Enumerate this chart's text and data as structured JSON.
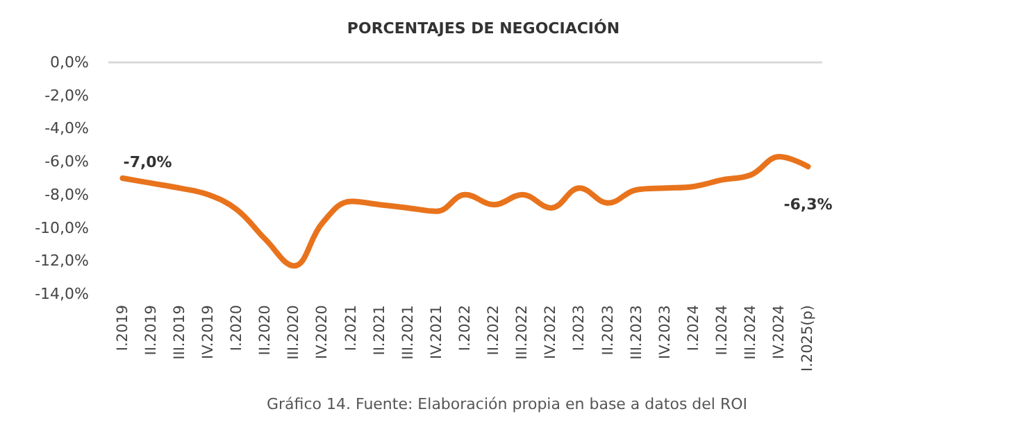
{
  "chart_data": {
    "type": "line",
    "title": "PORCENTAJES DE NEGOCIACIÓN",
    "categories": [
      "I.2019",
      "II.2019",
      "III.2019",
      "IV.2019",
      "I.2020",
      "II.2020",
      "III.2020",
      "IV.2020",
      "I.2021",
      "II.2021",
      "III.2021",
      "IV.2021",
      "I.2022",
      "II.2022",
      "III.2022",
      "IV.2022",
      "I.2023",
      "II.2023",
      "III.2023",
      "IV.2023",
      "I.2024",
      "II.2024",
      "III.2024",
      "IV.2024",
      "I.2025(p)"
    ],
    "series": [
      {
        "color": "#e8731c",
        "values": [
          -7.0,
          -7.3,
          -7.6,
          -8.0,
          -8.9,
          -10.7,
          -12.3,
          -9.7,
          -8.4,
          -8.6,
          -8.8,
          -9.0,
          -8.0,
          -8.6,
          -8.0,
          -8.8,
          -7.6,
          -8.5,
          -7.7,
          -7.6,
          -7.5,
          -7.1,
          -6.8,
          -5.7,
          -6.3
        ],
        "value_labels": [
          "-7,0%",
          null,
          null,
          null,
          null,
          null,
          null,
          null,
          null,
          null,
          null,
          null,
          null,
          null,
          null,
          null,
          null,
          null,
          null,
          null,
          null,
          null,
          null,
          null,
          "-6,3%"
        ]
      }
    ],
    "ylim": [
      -14,
      0
    ],
    "yticks": [
      {
        "value": 0,
        "label": "0,0%"
      },
      {
        "value": -2,
        "label": "-2,0%"
      },
      {
        "value": -4,
        "label": "-4,0%"
      },
      {
        "value": -6,
        "label": "-6,0%"
      },
      {
        "value": -8,
        "label": "-8,0%"
      },
      {
        "value": -10,
        "label": "-10,0%"
      },
      {
        "value": -12,
        "label": "-12,0%"
      },
      {
        "value": -14,
        "label": "-14,0%"
      }
    ],
    "ref_lines": [
      {
        "axis": "y",
        "value": 0,
        "color": "#d9d9d9"
      }
    ],
    "annotations": [
      "Gráfico 14. Fuente: Elaboración propia en base a datos del ROI"
    ],
    "grid": false,
    "marker": "none",
    "line_style": "solid"
  }
}
